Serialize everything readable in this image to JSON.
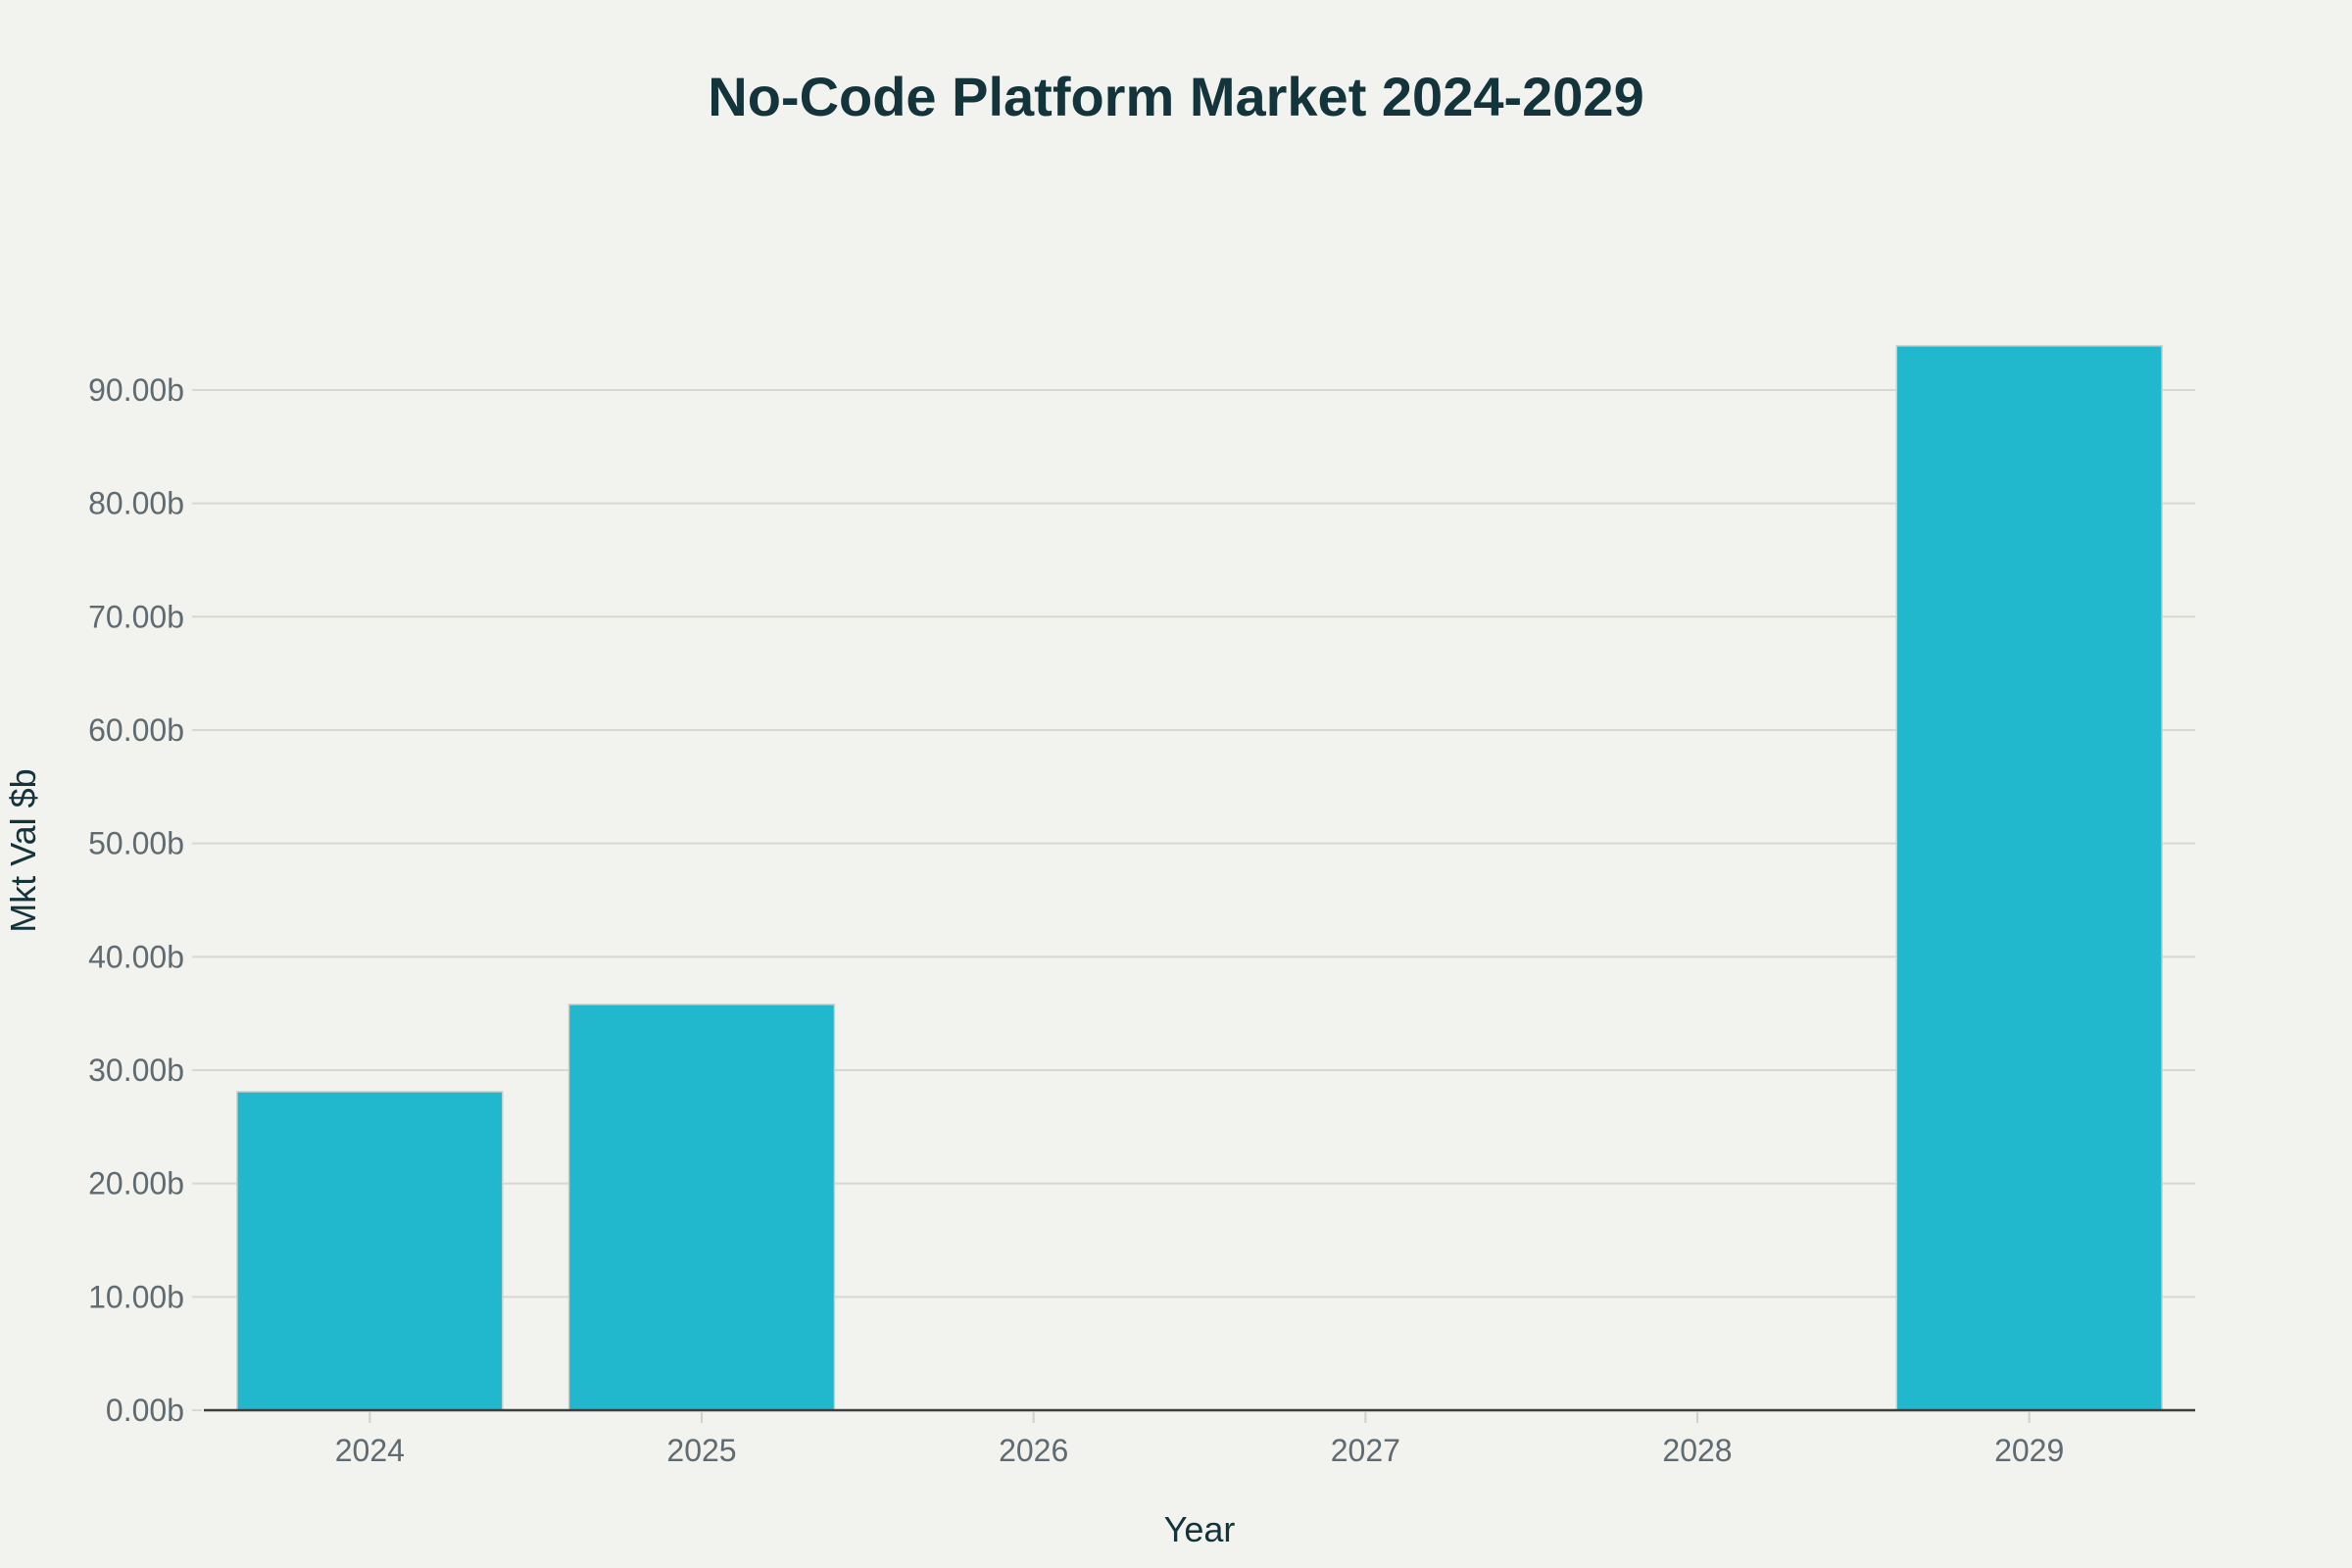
{
  "chart_data": {
    "type": "bar",
    "title": "No-Code Platform Market 2024-2029",
    "xlabel": "Year",
    "ylabel": "Mkt Val $b",
    "categories": [
      "2024",
      "2025",
      "2026",
      "2027",
      "2028",
      "2029"
    ],
    "values": [
      28.1,
      35.8,
      null,
      null,
      null,
      93.9
    ],
    "ylim": [
      0,
      95
    ],
    "yticks": [
      0,
      10,
      20,
      30,
      40,
      50,
      60,
      70,
      80,
      90
    ],
    "ytick_labels": [
      "0.00b",
      "10.00b",
      "20.00b",
      "30.00b",
      "40.00b",
      "50.00b",
      "60.00b",
      "70.00b",
      "80.00b",
      "90.00b"
    ],
    "grid": true,
    "legend": "none",
    "bar_color": "#21b8cd"
  }
}
